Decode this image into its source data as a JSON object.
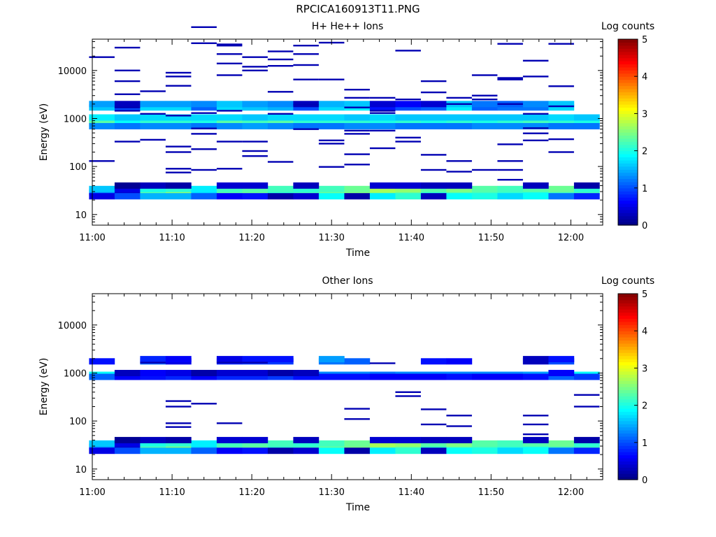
{
  "page": {
    "title": "RPCICA160913T11.PNG"
  },
  "chart_data": [
    {
      "type": "heatmap",
      "title": "H+ He++ Ions",
      "xlabel": "Time",
      "ylabel": "Energy (eV)",
      "y_scale": "log",
      "ylim": [
        6,
        45000
      ],
      "xlim_minutes": [
        0,
        64
      ],
      "x_ticks": [
        "11:00",
        "11:10",
        "11:20",
        "11:30",
        "11:40",
        "11:50",
        "12:00"
      ],
      "y_ticks": [
        "10",
        "100",
        "1000",
        "10000"
      ],
      "colorbar": {
        "label": "Log counts",
        "ticks": [
          "0",
          "1",
          "2",
          "3",
          "4",
          "5"
        ],
        "range": [
          0,
          5
        ]
      },
      "grid": false,
      "time_bins_minutes": [
        1.2,
        4.4,
        7.6,
        10.8,
        14.0,
        17.2,
        20.4,
        23.6,
        26.8,
        30.0,
        33.2,
        36.4,
        39.6,
        42.8,
        46.0,
        49.2,
        52.4,
        55.6,
        58.8,
        62.0
      ],
      "bins": [
        {
          "e": 29,
          "v": [
            1.3,
            0.4,
            2.3,
            2.6,
            1.7,
            2.3,
            2.4,
            2.1,
            2.2,
            2.4,
            2.5,
            2.6,
            2.4,
            2.1,
            2.3,
            2.2,
            2.1,
            2.0,
            2.2,
            2.2
          ]
        },
        {
          "e": 34,
          "v": [
            1.6,
            0.5,
            2.0,
            2.1,
            1.8,
            2.2,
            2.3,
            2.2,
            2.1,
            2.2,
            2.4,
            2.7,
            2.6,
            2.3,
            2.5,
            2.3,
            2.2,
            2.3,
            2.4,
            2.1
          ]
        },
        {
          "e": 24,
          "v": [
            0.5,
            1.0,
            1.5,
            1.5,
            1.1,
            0.6,
            0.7,
            0.2,
            0.4,
            1.9,
            0.2,
            1.8,
            2.1,
            0.3,
            1.9,
            2.0,
            1.7,
            1.9,
            1.2,
            0.8
          ]
        },
        {
          "e": 40,
          "v": [
            null,
            0.1,
            0.3,
            0.2,
            null,
            0.4,
            0.4,
            null,
            0.3,
            null,
            null,
            0.4,
            0.4,
            0.3,
            0.3,
            null,
            null,
            0.3,
            null,
            0.2
          ]
        },
        {
          "e": 880,
          "v": [
            2.8,
            2.5,
            2.6,
            2.6,
            2.5,
            2.9,
            2.9,
            3.0,
            2.6,
            2.6,
            2.6,
            2.5,
            2.6,
            2.5,
            2.6,
            2.5,
            2.5,
            2.6,
            2.6,
            2.7
          ]
        },
        {
          "e": 950,
          "v": [
            2.4,
            2.2,
            2.3,
            2.5,
            2.3,
            2.3,
            2.5,
            2.7,
            2.4,
            2.3,
            2.6,
            2.7,
            2.7,
            2.4,
            2.3,
            2.3,
            2.3,
            2.4,
            2.6,
            2.4
          ]
        },
        {
          "e": 780,
          "v": [
            2.3,
            1.9,
            2.1,
            2.1,
            2.0,
            2.3,
            2.2,
            2.3,
            2.1,
            2.1,
            2.1,
            2.0,
            2.1,
            2.0,
            2.1,
            2.0,
            2.1,
            2.2,
            2.1,
            2.0
          ]
        },
        {
          "e": 1050,
          "v": [
            1.8,
            1.6,
            1.7,
            1.7,
            1.7,
            1.7,
            1.6,
            1.7,
            1.7,
            1.7,
            1.6,
            1.7,
            1.6,
            1.6,
            1.6,
            1.6,
            1.6,
            1.6,
            1.7,
            1.6
          ]
        },
        {
          "e": 690,
          "v": [
            1.3,
            1.2,
            1.3,
            1.3,
            1.2,
            1.3,
            1.4,
            1.3,
            1.2,
            1.2,
            1.3,
            1.3,
            1.2,
            1.2,
            1.2,
            1.3,
            1.3,
            1.3,
            1.2,
            1.2
          ]
        },
        {
          "e": 1700,
          "v": [
            1.6,
            1.0,
            1.7,
            1.7,
            1.1,
            1.7,
            1.6,
            1.5,
            1.0,
            1.7,
            1.8,
            0.7,
            1.0,
            1.1,
            1.8,
            1.1,
            1.2,
            1.2,
            1.7,
            null
          ]
        },
        {
          "e": 2000,
          "v": [
            1.4,
            0.3,
            1.4,
            1.4,
            1.3,
            1.6,
            1.4,
            1.3,
            0.3,
            1.5,
            1.6,
            0.4,
            0.6,
            0.4,
            1.6,
            1.2,
            1.1,
            1.3,
            1.6,
            null
          ]
        }
      ],
      "lines": [
        [
          0,
          130
        ],
        [
          0,
          19000
        ],
        [
          1,
          1700
        ],
        [
          1,
          30000
        ],
        [
          1,
          10000
        ],
        [
          1,
          6000
        ],
        [
          1,
          3200
        ],
        [
          1,
          1450
        ],
        [
          1,
          330
        ],
        [
          2,
          3700
        ],
        [
          2,
          1250
        ],
        [
          2,
          360
        ],
        [
          3,
          260
        ],
        [
          3,
          200
        ],
        [
          3,
          90
        ],
        [
          3,
          75
        ],
        [
          3,
          9000
        ],
        [
          3,
          7500
        ],
        [
          3,
          4800
        ],
        [
          3,
          1150
        ],
        [
          4,
          80000
        ],
        [
          4,
          37000
        ],
        [
          4,
          1300
        ],
        [
          4,
          620
        ],
        [
          4,
          480
        ],
        [
          4,
          230
        ],
        [
          4,
          85
        ],
        [
          5,
          35000
        ],
        [
          5,
          33000
        ],
        [
          5,
          22000
        ],
        [
          5,
          8000
        ],
        [
          5,
          14000
        ],
        [
          5,
          1450
        ],
        [
          5,
          90
        ],
        [
          5,
          330
        ],
        [
          6,
          19000
        ],
        [
          6,
          12000
        ],
        [
          6,
          10000
        ],
        [
          6,
          330
        ],
        [
          6,
          210
        ],
        [
          6,
          165
        ],
        [
          7,
          25000
        ],
        [
          7,
          17000
        ],
        [
          7,
          12500
        ],
        [
          7,
          3600
        ],
        [
          7,
          1250
        ],
        [
          7,
          125
        ],
        [
          8,
          33000
        ],
        [
          8,
          22000
        ],
        [
          8,
          13000
        ],
        [
          8,
          6500
        ],
        [
          8,
          1950
        ],
        [
          8,
          600
        ],
        [
          9,
          38000
        ],
        [
          9,
          6500
        ],
        [
          9,
          350
        ],
        [
          9,
          300
        ],
        [
          9,
          98
        ],
        [
          10,
          4000
        ],
        [
          10,
          2700
        ],
        [
          10,
          1700
        ],
        [
          10,
          560
        ],
        [
          10,
          480
        ],
        [
          10,
          180
        ],
        [
          10,
          110
        ],
        [
          11,
          2700
        ],
        [
          11,
          1450
        ],
        [
          11,
          1300
        ],
        [
          11,
          560
        ],
        [
          11,
          240
        ],
        [
          12,
          26000
        ],
        [
          12,
          2500
        ],
        [
          12,
          400
        ],
        [
          12,
          330
        ],
        [
          13,
          6000
        ],
        [
          13,
          3500
        ],
        [
          13,
          175
        ],
        [
          13,
          85
        ],
        [
          14,
          2700
        ],
        [
          14,
          2000
        ],
        [
          14,
          130
        ],
        [
          14,
          78
        ],
        [
          15,
          8000
        ],
        [
          15,
          3000
        ],
        [
          15,
          2500
        ],
        [
          15,
          85
        ],
        [
          16,
          36000
        ],
        [
          16,
          7000
        ],
        [
          16,
          6500
        ],
        [
          16,
          2000
        ],
        [
          16,
          290
        ],
        [
          16,
          130
        ],
        [
          16,
          85
        ],
        [
          16,
          53
        ],
        [
          17,
          16000
        ],
        [
          17,
          7500
        ],
        [
          17,
          1250
        ],
        [
          17,
          630
        ],
        [
          17,
          490
        ],
        [
          17,
          350
        ],
        [
          18,
          36000
        ],
        [
          18,
          4700
        ],
        [
          18,
          1800
        ],
        [
          18,
          370
        ],
        [
          18,
          200
        ]
      ]
    },
    {
      "type": "heatmap",
      "title": "Other Ions",
      "xlabel": "Time",
      "ylabel": "Energy (eV)",
      "y_scale": "log",
      "ylim": [
        6,
        45000
      ],
      "xlim_minutes": [
        0,
        64
      ],
      "x_ticks": [
        "11:00",
        "11:10",
        "11:20",
        "11:30",
        "11:40",
        "11:50",
        "12:00"
      ],
      "y_ticks": [
        "10",
        "100",
        "1000",
        "10000"
      ],
      "colorbar": {
        "label": "Log counts",
        "ticks": [
          "0",
          "1",
          "2",
          "3",
          "4",
          "5"
        ],
        "range": [
          0,
          5
        ]
      },
      "grid": false,
      "time_bins_minutes": [
        1.2,
        4.4,
        7.6,
        10.8,
        14.0,
        17.2,
        20.4,
        23.6,
        26.8,
        30.0,
        33.2,
        36.4,
        39.6,
        42.8,
        46.0,
        49.2,
        52.4,
        55.6,
        58.8,
        62.0
      ],
      "bins": [
        {
          "e": 29,
          "v": [
            1.3,
            0.4,
            2.3,
            2.6,
            1.7,
            2.3,
            2.4,
            2.1,
            2.2,
            2.4,
            2.5,
            2.6,
            2.4,
            2.1,
            2.3,
            2.2,
            2.1,
            2.0,
            2.2,
            2.2
          ]
        },
        {
          "e": 34,
          "v": [
            1.6,
            0.5,
            2.0,
            2.1,
            1.8,
            2.2,
            2.3,
            2.2,
            2.1,
            2.2,
            2.4,
            2.7,
            2.6,
            2.3,
            2.5,
            2.3,
            2.2,
            2.3,
            2.4,
            2.1
          ]
        },
        {
          "e": 24,
          "v": [
            0.5,
            1.0,
            1.5,
            1.5,
            1.1,
            0.6,
            0.7,
            0.2,
            0.4,
            1.9,
            0.2,
            1.8,
            2.1,
            0.3,
            1.9,
            2.0,
            1.7,
            1.9,
            1.2,
            0.8
          ]
        },
        {
          "e": 40,
          "v": [
            null,
            0.1,
            0.3,
            0.2,
            null,
            0.4,
            0.4,
            null,
            0.3,
            null,
            null,
            0.4,
            0.4,
            0.3,
            0.3,
            null,
            null,
            0.3,
            null,
            0.2
          ]
        },
        {
          "e": 920,
          "v": [
            1.9,
            1.5,
            1.6,
            1.5,
            1.5,
            1.6,
            1.6,
            1.6,
            1.2,
            1.3,
            1.3,
            1.2,
            1.3,
            1.3,
            1.3,
            1.3,
            1.3,
            1.4,
            1.7,
            1.9
          ]
        },
        {
          "e": 830,
          "v": [
            1.1,
            0.6,
            0.7,
            0.8,
            0.6,
            0.8,
            0.8,
            0.9,
            0.7,
            0.7,
            0.7,
            0.6,
            0.6,
            0.6,
            0.7,
            0.6,
            0.6,
            0.7,
            1.1,
            0.9
          ]
        },
        {
          "e": 1000,
          "v": [
            null,
            0.3,
            0.6,
            0.5,
            0.2,
            0.4,
            0.4,
            0.2,
            0.3,
            null,
            null,
            null,
            null,
            null,
            null,
            null,
            null,
            null,
            0.6,
            null
          ]
        },
        {
          "e": 1750,
          "v": [
            0.7,
            null,
            1.1,
            0.5,
            null,
            0.8,
            0.9,
            0.9,
            null,
            1.2,
            1.1,
            null,
            null,
            0.7,
            0.6,
            null,
            null,
            0.5,
            1.0,
            null
          ]
        },
        {
          "e": 1950,
          "v": [
            null,
            null,
            0.8,
            0.6,
            null,
            0.5,
            0.7,
            0.7,
            null,
            1.4,
            null,
            null,
            null,
            null,
            null,
            null,
            null,
            0.3,
            0.7,
            null
          ]
        }
      ],
      "lines": [
        [
          3,
          260
        ],
        [
          3,
          200
        ],
        [
          3,
          90
        ],
        [
          3,
          75
        ],
        [
          4,
          230
        ],
        [
          5,
          90
        ],
        [
          10,
          180
        ],
        [
          10,
          110
        ],
        [
          12,
          400
        ],
        [
          12,
          330
        ],
        [
          13,
          175
        ],
        [
          13,
          85
        ],
        [
          14,
          130
        ],
        [
          14,
          78
        ],
        [
          17,
          1600
        ],
        [
          17,
          130
        ],
        [
          17,
          85
        ],
        [
          17,
          53
        ],
        [
          19,
          350
        ],
        [
          19,
          200
        ],
        [
          2,
          1650
        ],
        [
          5,
          1650
        ],
        [
          6,
          1650
        ],
        [
          11,
          1600
        ]
      ]
    }
  ]
}
